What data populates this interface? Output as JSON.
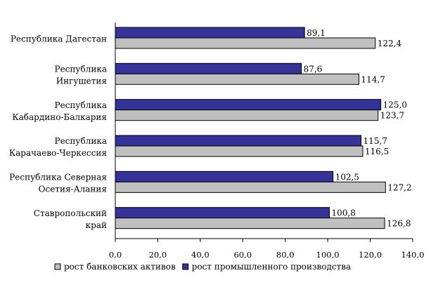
{
  "chart_data": {
    "type": "bar",
    "orientation": "horizontal",
    "categories": [
      [
        "Республика Дагестан"
      ],
      [
        "Республика",
        "Ингушетия"
      ],
      [
        "Республика",
        "Кабардино-Балкария"
      ],
      [
        "Республика",
        "Карачаево-Черкессия"
      ],
      [
        "Республика Северная",
        "Осетия-Алания"
      ],
      [
        "Ставропольский",
        "край"
      ]
    ],
    "series": [
      {
        "name": "рост промышленного производства",
        "color": "#333399",
        "values": [
          89.1,
          87.6,
          125.0,
          115.7,
          102.5,
          100.8
        ],
        "labels": [
          "89,1",
          "87,6",
          "125,0",
          "115,7",
          "102,5",
          "100,8"
        ]
      },
      {
        "name": "рост банковских активов",
        "color": "#c0c0c0",
        "values": [
          122.4,
          114.7,
          123.7,
          116.5,
          127.2,
          126.8
        ],
        "labels": [
          "122,4",
          "114,7",
          "123,7",
          "116,5",
          "127,2",
          "126,8"
        ]
      }
    ],
    "xlim": [
      0,
      140
    ],
    "ticks": [
      0,
      20,
      40,
      60,
      80,
      100,
      120,
      140
    ],
    "tick_labels": [
      "0,0",
      "20,0",
      "40,0",
      "60,0",
      "80,0",
      "100,0",
      "120,0",
      "140,0"
    ],
    "grid": false,
    "legend_position": "bottom",
    "legend": [
      {
        "label": "рост банковских активов",
        "color": "#c0c0c0"
      },
      {
        "label": "рост промышленного производства",
        "color": "#333399"
      }
    ]
  }
}
